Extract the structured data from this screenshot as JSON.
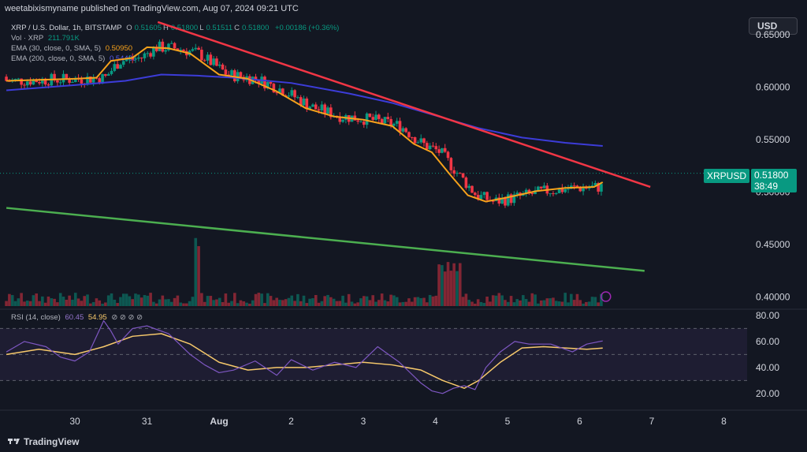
{
  "header": {
    "published": "weetabixismyname published on TradingView.com, Aug 07, 2024 09:21 UTC",
    "currency_button": "USD"
  },
  "legend": {
    "symbol": "XRP / U.S. Dollar, 1h, BITSTAMP",
    "ohlc": [
      {
        "k": "O",
        "v": "0.51605"
      },
      {
        "k": "H",
        "v": "0.51800"
      },
      {
        "k": "L",
        "v": "0.51511"
      },
      {
        "k": "C",
        "v": "0.51800"
      }
    ],
    "change": "+0.00186 (+0.36%)",
    "vol_label": "Vol · XRP",
    "vol_value": "211.791K",
    "ema30_label": "EMA (30, close, 0, SMA, 5)",
    "ema30_value": "0.50950",
    "ema200_label": "EMA (200, close, 0, SMA, 5)",
    "ema200_value": "0.54486",
    "rsi_label": "RSI (14, close)",
    "rsi_value": "60.45",
    "rsi_ma_value": "54.95"
  },
  "price_tag": {
    "symbol": "XRPUSD",
    "price": "0.51800",
    "countdown": "38:49"
  },
  "footer": {
    "brand": "TradingView"
  },
  "colors": {
    "background": "#131722",
    "up": "#089981",
    "down": "#f23645",
    "ema30": "#f7a21b",
    "ema200": "#3c3cd8",
    "resistance": "#f23645",
    "support": "#4caf50",
    "rsi": "#7e57c2",
    "rsi_ma": "#f7c96b"
  },
  "chart_data": {
    "type": "line",
    "title": "XRP / U.S. Dollar, 1h, BITSTAMP",
    "x_ticks": [
      "30",
      "31",
      "Aug",
      "2",
      "3",
      "4",
      "5",
      "6",
      "7",
      "8"
    ],
    "x_range": [
      "Jul 29 12:00",
      "Aug 8 06:00"
    ],
    "price_axis": {
      "ticks": [
        "0.65000",
        "0.60000",
        "0.55000",
        "0.50000",
        "0.45000",
        "0.40000"
      ],
      "range": [
        0.39,
        0.665
      ],
      "grid": false
    },
    "rsi_axis": {
      "ticks": [
        "80.00",
        "60.00",
        "40.00",
        "20.00"
      ],
      "range": [
        12,
        83
      ],
      "bands": [
        30,
        50,
        70
      ]
    },
    "series": [
      {
        "name": "EMA (30, close, 0, SMA, 5)",
        "x": [
          -0.95,
          -0.5,
          0,
          0.3,
          0.5,
          0.8,
          1.0,
          1.3,
          1.6,
          2.0,
          2.4,
          2.8,
          3.2,
          3.6,
          4.0,
          4.4,
          4.7,
          4.95,
          5.2,
          5.45,
          5.7,
          6.0,
          6.4,
          6.8,
          7.2,
          7.32
        ],
        "y": [
          0.606,
          0.607,
          0.608,
          0.609,
          0.625,
          0.628,
          0.638,
          0.637,
          0.632,
          0.612,
          0.608,
          0.596,
          0.58,
          0.572,
          0.569,
          0.563,
          0.546,
          0.538,
          0.517,
          0.497,
          0.491,
          0.495,
          0.501,
          0.504,
          0.505,
          0.5095
        ]
      },
      {
        "name": "EMA (200, close, 0, SMA, 5)",
        "x": [
          -0.95,
          0,
          0.7,
          1.2,
          1.7,
          2.2,
          3.0,
          3.8,
          4.4,
          5.0,
          5.6,
          6.2,
          6.8,
          7.32
        ],
        "y": [
          0.597,
          0.602,
          0.606,
          0.612,
          0.611,
          0.609,
          0.604,
          0.594,
          0.585,
          0.573,
          0.561,
          0.552,
          0.547,
          0.544
        ]
      },
      {
        "name": "Resistance",
        "x": [
          1.15,
          7.98
        ],
        "y": [
          0.662,
          0.505
        ]
      },
      {
        "name": "Support",
        "x": [
          -0.95,
          7.9
        ],
        "y": [
          0.485,
          0.425
        ]
      },
      {
        "name": "RSI (14, close)",
        "x": [
          -0.95,
          -0.7,
          -0.4,
          -0.2,
          0,
          0.2,
          0.4,
          0.5,
          0.6,
          0.8,
          1.0,
          1.3,
          1.6,
          1.8,
          2.0,
          2.2,
          2.5,
          2.8,
          3.0,
          3.3,
          3.6,
          3.9,
          4.2,
          4.5,
          4.8,
          4.95,
          5.1,
          5.25,
          5.4,
          5.55,
          5.7,
          5.9,
          6.1,
          6.3,
          6.6,
          6.9,
          7.1,
          7.32
        ],
        "y": [
          52,
          60,
          56,
          48,
          45,
          52,
          76,
          68,
          58,
          70,
          72,
          66,
          50,
          42,
          36,
          38,
          45,
          34,
          46,
          38,
          44,
          40,
          56,
          44,
          28,
          22,
          20,
          24,
          26,
          23,
          40,
          52,
          60,
          58,
          58,
          52,
          58,
          60.45
        ]
      },
      {
        "name": "RSI MA",
        "x": [
          -0.95,
          -0.5,
          0,
          0.4,
          0.8,
          1.2,
          1.6,
          2.0,
          2.4,
          2.8,
          3.2,
          3.6,
          4.0,
          4.4,
          4.8,
          5.1,
          5.4,
          5.6,
          5.9,
          6.2,
          6.5,
          6.8,
          7.1,
          7.32
        ],
        "y": [
          50,
          54,
          50,
          56,
          64,
          66,
          58,
          44,
          38,
          40,
          40,
          42,
          44,
          42,
          38,
          30,
          24,
          30,
          44,
          55,
          56,
          55,
          54,
          54.95
        ]
      }
    ]
  }
}
